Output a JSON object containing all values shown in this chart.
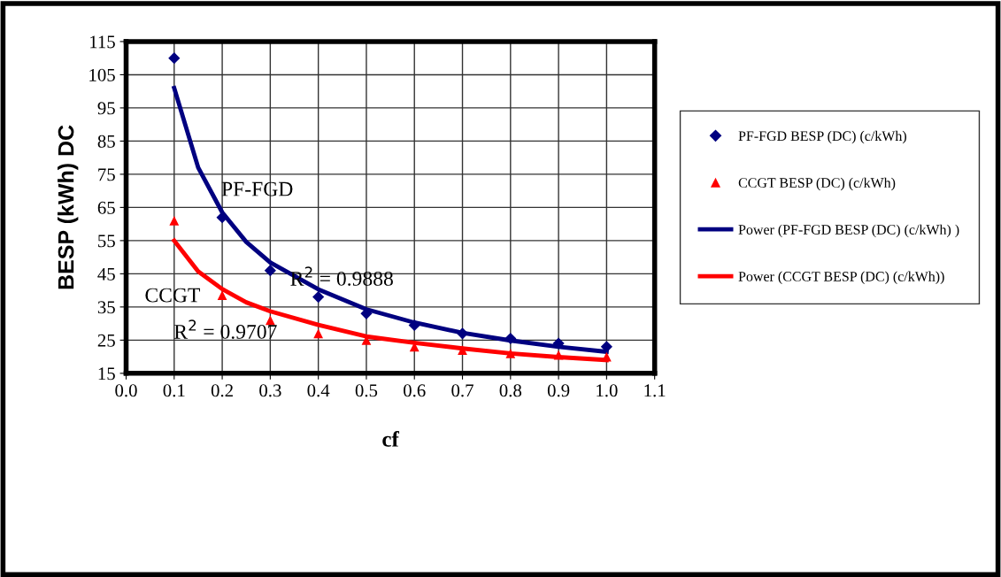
{
  "chart_data": {
    "type": "scatter",
    "xlabel": "cf",
    "ylabel": "BESP (kWh) DC",
    "x": [
      0.1,
      0.2,
      0.3,
      0.4,
      0.5,
      0.6,
      0.7,
      0.8,
      0.9,
      1.0
    ],
    "series": [
      {
        "name": "PF-FGD BESP (DC) (c/kWh)",
        "color": "#000080",
        "marker": "diamond",
        "values": [
          110,
          62,
          46,
          38,
          33,
          29.5,
          27,
          25.5,
          24,
          23
        ]
      },
      {
        "name": "CCGT BESP (DC) (c/kWh)",
        "color": "#ff0000",
        "marker": "triangle",
        "values": [
          61,
          38.5,
          31,
          27,
          25,
          23,
          22,
          21,
          20.5,
          20
        ]
      },
      {
        "name": "Power (PF-FGD BESP (DC) (c/kWh) )",
        "type": "line",
        "color": "#000080",
        "x": [
          0.1,
          0.15,
          0.2,
          0.25,
          0.3,
          0.4,
          0.5,
          0.6,
          0.7,
          0.8,
          0.9,
          1.0
        ],
        "values": [
          101,
          77,
          63.5,
          54.6,
          48.4,
          40.3,
          34.3,
          30.3,
          27.2,
          24.9,
          23,
          21.5
        ]
      },
      {
        "name": "Power (CCGT BESP (DC) (c/kWh))",
        "type": "line",
        "color": "#ff0000",
        "x": [
          0.1,
          0.15,
          0.2,
          0.25,
          0.3,
          0.4,
          0.5,
          0.6,
          0.7,
          0.8,
          0.9,
          1.0
        ],
        "values": [
          55,
          45.7,
          40.4,
          36.4,
          33.7,
          29.6,
          26.1,
          24.2,
          22.5,
          21,
          19.9,
          19
        ]
      }
    ],
    "xlim": [
      0.0,
      1.1
    ],
    "xticks": [
      {
        "value": 0.0,
        "label": "0.0"
      },
      {
        "value": 0.1,
        "label": "0.1"
      },
      {
        "value": 0.2,
        "label": "0.2"
      },
      {
        "value": 0.3,
        "label": "0.3"
      },
      {
        "value": 0.4,
        "label": "0.4"
      },
      {
        "value": 0.5,
        "label": "0.5"
      },
      {
        "value": 0.6,
        "label": "0.6"
      },
      {
        "value": 0.7,
        "label": "0.7"
      },
      {
        "value": 0.8,
        "label": "0.8"
      },
      {
        "value": 0.9,
        "label": "0.9"
      },
      {
        "value": 1.0,
        "label": "1.0"
      },
      {
        "value": 1.1,
        "label": "1.1"
      }
    ],
    "ylim": [
      15,
      115
    ],
    "yticks": [
      15,
      25,
      35,
      45,
      55,
      65,
      75,
      85,
      95,
      105,
      115
    ],
    "grid": true,
    "legend": "right",
    "annotations": [
      "PF-FGD",
      "R$^{2}$ = 0.9888",
      "CCGT",
      "R$^{2}$ = 0.9707"
    ]
  }
}
